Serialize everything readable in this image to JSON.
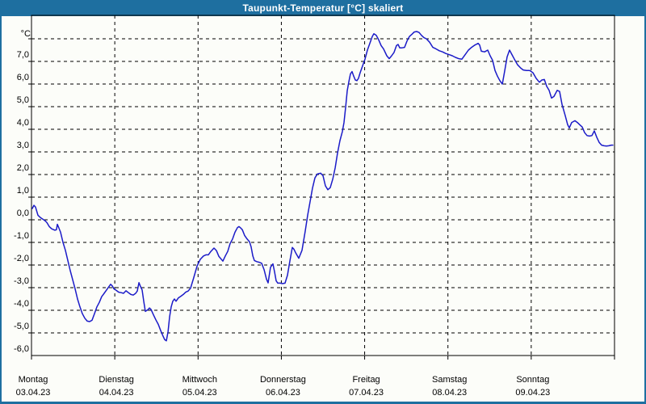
{
  "window": {
    "title": "Taupunkt-Temperatur [°C] skaliert",
    "title_bar_color": "#1e6fa0",
    "frame_color": "#1e6fa0",
    "background_color": "#fcfdf9"
  },
  "chart_data": {
    "type": "line",
    "title": "Taupunkt-Temperatur [°C] skaliert",
    "y_unit_label": "°C",
    "ylim": [
      -7,
      8
    ],
    "xlim_days": [
      0,
      7
    ],
    "grid": "dashed",
    "legend": "none",
    "line_color": "#1b1bc8",
    "grid_color": "#000000",
    "y_ticks": [
      {
        "value": 7,
        "label": "7,0"
      },
      {
        "value": 6,
        "label": "6,0"
      },
      {
        "value": 5,
        "label": "5,0"
      },
      {
        "value": 4,
        "label": "4,0"
      },
      {
        "value": 3,
        "label": "3,0"
      },
      {
        "value": 2,
        "label": "2,0"
      },
      {
        "value": 1,
        "label": "1,0"
      },
      {
        "value": 0,
        "label": "0,0"
      },
      {
        "value": -1,
        "label": "-1,0"
      },
      {
        "value": -2,
        "label": "-2,0"
      },
      {
        "value": -3,
        "label": "-3,0"
      },
      {
        "value": -4,
        "label": "-4,0"
      },
      {
        "value": -5,
        "label": "-5,0"
      },
      {
        "value": -6,
        "label": "-6,0"
      }
    ],
    "x_days": [
      {
        "name": "Montag",
        "date": "03.04.23",
        "day_offset": 0
      },
      {
        "name": "Dienstag",
        "date": "04.04.23",
        "day_offset": 1
      },
      {
        "name": "Mittwoch",
        "date": "05.04.23",
        "day_offset": 2
      },
      {
        "name": "Donnerstag",
        "date": "06.04.23",
        "day_offset": 3
      },
      {
        "name": "Freitag",
        "date": "07.04.23",
        "day_offset": 4
      },
      {
        "name": "Samstag",
        "date": "08.04.23",
        "day_offset": 5
      },
      {
        "name": "Sonntag",
        "date": "09.04.23",
        "day_offset": 6
      }
    ],
    "series": [
      {
        "name": "Taupunkt",
        "points": [
          [
            0.01,
            -0.5
          ],
          [
            0.029,
            -0.36
          ],
          [
            0.048,
            -0.44
          ],
          [
            0.078,
            -0.8
          ],
          [
            0.107,
            -0.9
          ],
          [
            0.136,
            -0.97
          ],
          [
            0.165,
            -1.05
          ],
          [
            0.184,
            -1.12
          ],
          [
            0.213,
            -1.3
          ],
          [
            0.242,
            -1.4
          ],
          [
            0.281,
            -1.46
          ],
          [
            0.3,
            -1.44
          ],
          [
            0.31,
            -1.2
          ],
          [
            0.329,
            -1.36
          ],
          [
            0.349,
            -1.55
          ],
          [
            0.378,
            -2.0
          ],
          [
            0.407,
            -2.35
          ],
          [
            0.436,
            -2.8
          ],
          [
            0.465,
            -3.25
          ],
          [
            0.494,
            -3.65
          ],
          [
            0.524,
            -4.05
          ],
          [
            0.553,
            -4.5
          ],
          [
            0.582,
            -4.85
          ],
          [
            0.611,
            -5.15
          ],
          [
            0.64,
            -5.35
          ],
          [
            0.669,
            -5.48
          ],
          [
            0.698,
            -5.5
          ],
          [
            0.727,
            -5.44
          ],
          [
            0.756,
            -5.15
          ],
          [
            0.785,
            -4.85
          ],
          [
            0.814,
            -4.65
          ],
          [
            0.843,
            -4.4
          ],
          [
            0.873,
            -4.25
          ],
          [
            0.902,
            -4.1
          ],
          [
            0.931,
            -3.95
          ],
          [
            0.95,
            -3.85
          ],
          [
            0.97,
            -3.92
          ],
          [
            0.989,
            -4.05
          ],
          [
            1.018,
            -4.12
          ],
          [
            1.047,
            -4.2
          ],
          [
            1.076,
            -4.22
          ],
          [
            1.105,
            -4.25
          ],
          [
            1.134,
            -4.14
          ],
          [
            1.163,
            -4.22
          ],
          [
            1.193,
            -4.3
          ],
          [
            1.222,
            -4.33
          ],
          [
            1.251,
            -4.25
          ],
          [
            1.27,
            -4.15
          ],
          [
            1.29,
            -3.78
          ],
          [
            1.309,
            -3.95
          ],
          [
            1.328,
            -4.1
          ],
          [
            1.348,
            -4.6
          ],
          [
            1.367,
            -5.05
          ],
          [
            1.396,
            -4.98
          ],
          [
            1.416,
            -4.9
          ],
          [
            1.435,
            -4.96
          ],
          [
            1.464,
            -5.2
          ],
          [
            1.493,
            -5.42
          ],
          [
            1.522,
            -5.62
          ],
          [
            1.551,
            -5.9
          ],
          [
            1.58,
            -6.15
          ],
          [
            1.6,
            -6.3
          ],
          [
            1.619,
            -6.35
          ],
          [
            1.639,
            -5.95
          ],
          [
            1.658,
            -5.3
          ],
          [
            1.677,
            -4.85
          ],
          [
            1.697,
            -4.6
          ],
          [
            1.716,
            -4.5
          ],
          [
            1.735,
            -4.6
          ],
          [
            1.765,
            -4.45
          ],
          [
            1.794,
            -4.38
          ],
          [
            1.823,
            -4.3
          ],
          [
            1.852,
            -4.2
          ],
          [
            1.881,
            -4.15
          ],
          [
            1.91,
            -4.02
          ],
          [
            1.949,
            -3.55
          ],
          [
            1.988,
            -3.05
          ],
          [
            2.026,
            -2.75
          ],
          [
            2.065,
            -2.6
          ],
          [
            2.094,
            -2.55
          ],
          [
            2.123,
            -2.55
          ],
          [
            2.153,
            -2.4
          ],
          [
            2.191,
            -2.25
          ],
          [
            2.22,
            -2.36
          ],
          [
            2.25,
            -2.62
          ],
          [
            2.298,
            -2.83
          ],
          [
            2.327,
            -2.6
          ],
          [
            2.356,
            -2.4
          ],
          [
            2.385,
            -2.05
          ],
          [
            2.414,
            -1.85
          ],
          [
            2.443,
            -1.55
          ],
          [
            2.472,
            -1.35
          ],
          [
            2.492,
            -1.3
          ],
          [
            2.511,
            -1.36
          ],
          [
            2.531,
            -1.44
          ],
          [
            2.56,
            -1.7
          ],
          [
            2.589,
            -1.85
          ],
          [
            2.618,
            -1.97
          ],
          [
            2.637,
            -2.2
          ],
          [
            2.657,
            -2.6
          ],
          [
            2.676,
            -2.8
          ],
          [
            2.705,
            -2.85
          ],
          [
            2.734,
            -2.88
          ],
          [
            2.763,
            -2.92
          ],
          [
            2.792,
            -3.2
          ],
          [
            2.821,
            -3.62
          ],
          [
            2.841,
            -3.79
          ],
          [
            2.87,
            -3.1
          ],
          [
            2.899,
            -2.95
          ],
          [
            2.918,
            -3.3
          ],
          [
            2.938,
            -3.7
          ],
          [
            2.957,
            -3.8
          ],
          [
            2.986,
            -3.8
          ],
          [
            3.015,
            -3.82
          ],
          [
            3.044,
            -3.8
          ],
          [
            3.073,
            -3.45
          ],
          [
            3.103,
            -2.8
          ],
          [
            3.132,
            -2.22
          ],
          [
            3.151,
            -2.3
          ],
          [
            3.17,
            -2.45
          ],
          [
            3.209,
            -2.7
          ],
          [
            3.248,
            -2.35
          ],
          [
            3.287,
            -1.5
          ],
          [
            3.316,
            -0.8
          ],
          [
            3.345,
            -0.2
          ],
          [
            3.374,
            0.4
          ],
          [
            3.403,
            0.85
          ],
          [
            3.432,
            1.02
          ],
          [
            3.471,
            1.06
          ],
          [
            3.5,
            0.95
          ],
          [
            3.529,
            0.5
          ],
          [
            3.558,
            0.33
          ],
          [
            3.587,
            0.42
          ],
          [
            3.617,
            0.8
          ],
          [
            3.646,
            1.3
          ],
          [
            3.675,
            1.95
          ],
          [
            3.704,
            2.5
          ],
          [
            3.733,
            2.9
          ],
          [
            3.752,
            3.3
          ],
          [
            3.772,
            4.0
          ],
          [
            3.791,
            4.7
          ],
          [
            3.81,
            5.1
          ],
          [
            3.83,
            5.45
          ],
          [
            3.849,
            5.55
          ],
          [
            3.868,
            5.35
          ],
          [
            3.888,
            5.18
          ],
          [
            3.907,
            5.15
          ],
          [
            3.926,
            5.25
          ],
          [
            3.946,
            5.5
          ],
          [
            3.965,
            5.7
          ],
          [
            3.985,
            5.9
          ],
          [
            4.004,
            6.1
          ],
          [
            4.033,
            6.5
          ],
          [
            4.062,
            6.8
          ],
          [
            4.091,
            7.1
          ],
          [
            4.111,
            7.22
          ],
          [
            4.14,
            7.15
          ],
          [
            4.169,
            6.95
          ],
          [
            4.198,
            6.7
          ],
          [
            4.227,
            6.55
          ],
          [
            4.266,
            6.25
          ],
          [
            4.295,
            6.12
          ],
          [
            4.324,
            6.25
          ],
          [
            4.353,
            6.4
          ],
          [
            4.382,
            6.7
          ],
          [
            4.402,
            6.75
          ],
          [
            4.421,
            6.6
          ],
          [
            4.45,
            6.6
          ],
          [
            4.479,
            6.62
          ],
          [
            4.508,
            6.9
          ],
          [
            4.537,
            7.1
          ],
          [
            4.567,
            7.2
          ],
          [
            4.596,
            7.3
          ],
          [
            4.625,
            7.32
          ],
          [
            4.654,
            7.28
          ],
          [
            4.683,
            7.15
          ],
          [
            4.712,
            7.05
          ],
          [
            4.741,
            7.0
          ],
          [
            4.78,
            6.85
          ],
          [
            4.819,
            6.62
          ],
          [
            4.858,
            6.55
          ],
          [
            4.896,
            6.47
          ],
          [
            4.935,
            6.42
          ],
          [
            4.974,
            6.35
          ],
          [
            5.013,
            6.3
          ],
          [
            5.052,
            6.25
          ],
          [
            5.09,
            6.18
          ],
          [
            5.129,
            6.12
          ],
          [
            5.168,
            6.1
          ],
          [
            5.207,
            6.3
          ],
          [
            5.246,
            6.5
          ],
          [
            5.284,
            6.62
          ],
          [
            5.323,
            6.72
          ],
          [
            5.362,
            6.8
          ],
          [
            5.381,
            6.72
          ],
          [
            5.401,
            6.45
          ],
          [
            5.44,
            6.42
          ],
          [
            5.478,
            6.5
          ],
          [
            5.507,
            6.25
          ],
          [
            5.536,
            6.05
          ],
          [
            5.565,
            5.6
          ],
          [
            5.594,
            5.35
          ],
          [
            5.623,
            5.15
          ],
          [
            5.653,
            5.0
          ],
          [
            5.682,
            5.6
          ],
          [
            5.711,
            6.2
          ],
          [
            5.74,
            6.5
          ],
          [
            5.769,
            6.3
          ],
          [
            5.798,
            6.1
          ],
          [
            5.837,
            5.85
          ],
          [
            5.875,
            5.7
          ],
          [
            5.904,
            5.62
          ],
          [
            5.943,
            5.6
          ],
          [
            5.982,
            5.6
          ],
          [
            6.021,
            5.5
          ],
          [
            6.06,
            5.25
          ],
          [
            6.098,
            5.08
          ],
          [
            6.127,
            5.18
          ],
          [
            6.157,
            5.2
          ],
          [
            6.186,
            4.9
          ],
          [
            6.215,
            4.72
          ],
          [
            6.244,
            4.38
          ],
          [
            6.273,
            4.45
          ],
          [
            6.312,
            4.72
          ],
          [
            6.341,
            4.67
          ],
          [
            6.37,
            4.1
          ],
          [
            6.409,
            3.6
          ],
          [
            6.438,
            3.2
          ],
          [
            6.457,
            3.06
          ],
          [
            6.486,
            3.3
          ],
          [
            6.525,
            3.38
          ],
          [
            6.554,
            3.3
          ],
          [
            6.583,
            3.2
          ],
          [
            6.612,
            3.1
          ],
          [
            6.641,
            2.85
          ],
          [
            6.67,
            2.72
          ],
          [
            6.699,
            2.7
          ],
          [
            6.729,
            2.72
          ],
          [
            6.758,
            2.93
          ],
          [
            6.787,
            2.65
          ],
          [
            6.816,
            2.42
          ],
          [
            6.845,
            2.3
          ],
          [
            6.874,
            2.27
          ],
          [
            6.903,
            2.26
          ],
          [
            6.932,
            2.27
          ],
          [
            6.962,
            2.3
          ],
          [
            6.981,
            2.3
          ]
        ]
      }
    ]
  }
}
